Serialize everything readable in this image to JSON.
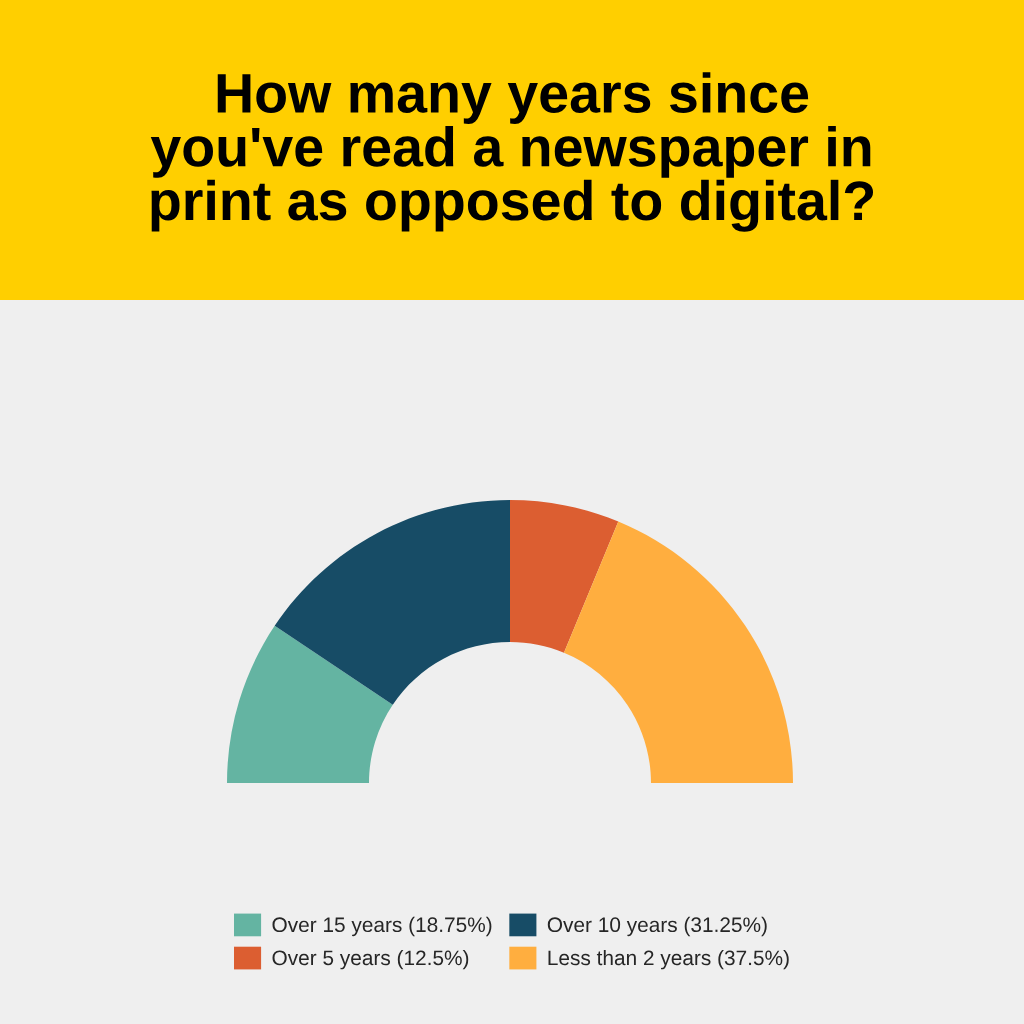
{
  "chart_data": {
    "type": "donut",
    "title": "How many years since\nyou've read a newspaper in\nprint as opposed to digital?",
    "categories": [
      "Over 15 years (18.75%)",
      "Over 10 years (31.25%)",
      "Over 5 years (12.5%)",
      "Less than 2 years (37.5%)"
    ],
    "values": [
      18.75,
      31.25,
      12.5,
      37.5
    ],
    "colors": [
      "#64b4a2",
      "#174c66",
      "#dc5e31",
      "#ffae3f"
    ],
    "legend": "bottom"
  }
}
